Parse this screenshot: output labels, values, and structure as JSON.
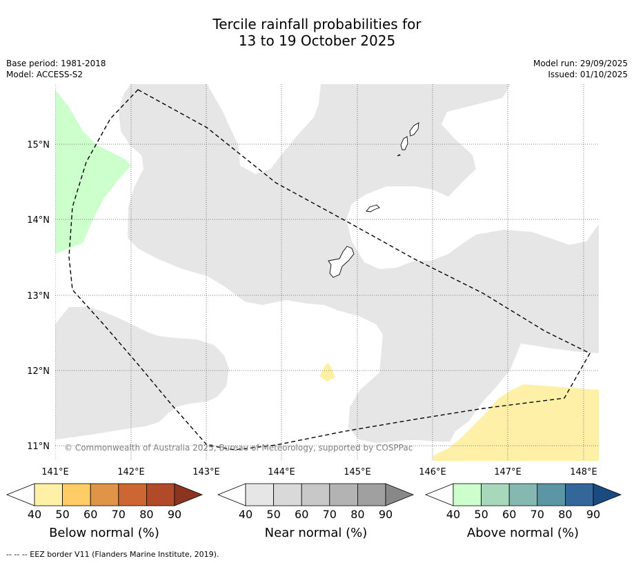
{
  "title": {
    "line1": "Tercile rainfall probabilities for",
    "line2": "13 to 19 October 2025"
  },
  "meta": {
    "base_period": "Base period: 1981-2018",
    "model": "Model: ACCESS-S2",
    "model_run": "Model run: 29/09/2025",
    "issued": "Issued: 01/10/2025"
  },
  "map": {
    "lat_labels": [
      "15°N",
      "14°N",
      "13°N",
      "12°N",
      "11°N"
    ],
    "lon_labels": [
      "141°E",
      "142°E",
      "143°E",
      "144°E",
      "145°E",
      "146°E",
      "147°E",
      "148°E"
    ],
    "copyright": "© Commonwealth of Australia 2025, Bureau of Meteorology, supported by COSPPac",
    "regions": [
      {
        "name": "near-normal",
        "probability_band": "40-50"
      },
      {
        "name": "above-normal",
        "probability_band": "40-50"
      },
      {
        "name": "below-normal",
        "probability_band": "40-50"
      }
    ]
  },
  "colorbars": {
    "below": {
      "label": "Below normal (%)",
      "ticks": [
        "40",
        "50",
        "60",
        "70",
        "80",
        "90"
      ],
      "colors": [
        "#ffffff",
        "#fff0a8",
        "#ffcc66",
        "#e09448",
        "#cc6633",
        "#b04a28",
        "#8b3520"
      ]
    },
    "near": {
      "label": "Near normal (%)",
      "ticks": [
        "40",
        "50",
        "60",
        "70",
        "80",
        "90"
      ],
      "colors": [
        "#ffffff",
        "#e6e6e6",
        "#d9d9d9",
        "#c8c8c8",
        "#b3b3b3",
        "#a0a0a0",
        "#888888"
      ]
    },
    "above": {
      "label": "Above normal (%)",
      "ticks": [
        "40",
        "50",
        "60",
        "70",
        "80",
        "90"
      ],
      "colors": [
        "#ffffff",
        "#ccffcc",
        "#a8d8bc",
        "#84b8b0",
        "#5c96a4",
        "#336699",
        "#1a4a80"
      ]
    }
  },
  "footnote": "--  --  -- EEZ border V11 (Flanders Marine Institute, 2019)."
}
